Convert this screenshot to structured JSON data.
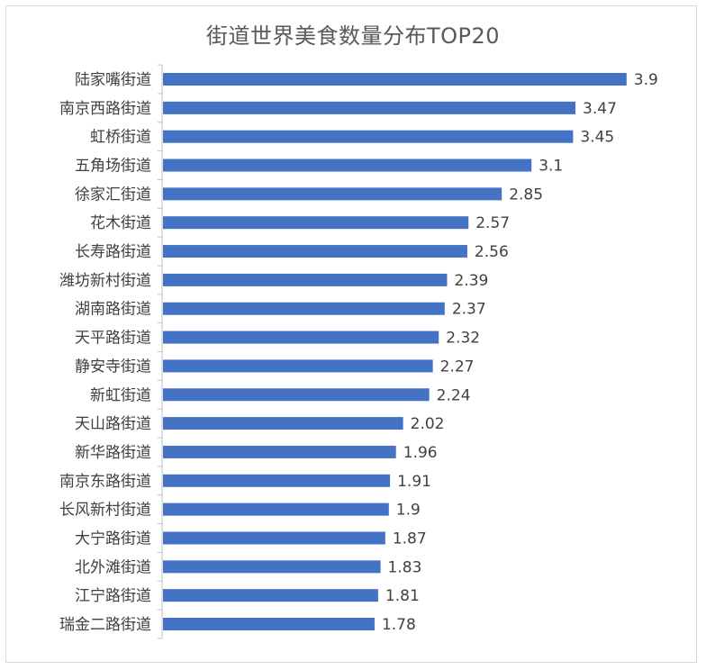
{
  "chart_data": {
    "type": "bar",
    "orientation": "horizontal",
    "title": "街道世界美食数量分布TOP20",
    "categories": [
      "陆家嘴街道",
      "南京西路街道",
      "虹桥街道",
      "五角场街道",
      "徐家汇街道",
      "花木街道",
      "长寿路街道",
      "潍坊新村街道",
      "湖南路街道",
      "天平路街道",
      "静安寺街道",
      "新虹街道",
      "天山路街道",
      "新华路街道",
      "南京东路街道",
      "长风新村街道",
      "大宁路街道",
      "北外滩街道",
      "江宁路街道",
      "瑞金二路街道"
    ],
    "values": [
      3.9,
      3.47,
      3.45,
      3.1,
      2.85,
      2.57,
      2.56,
      2.39,
      2.37,
      2.32,
      2.27,
      2.24,
      2.02,
      1.96,
      1.91,
      1.9,
      1.87,
      1.83,
      1.81,
      1.78
    ],
    "value_labels": [
      "3.9",
      "3.47",
      "3.45",
      "3.1",
      "2.85",
      "2.57",
      "2.56",
      "2.39",
      "2.37",
      "2.32",
      "2.27",
      "2.24",
      "2.02",
      "1.96",
      "1.91",
      "1.9",
      "1.87",
      "1.83",
      "1.81",
      "1.78"
    ],
    "xlim": [
      0,
      4
    ],
    "bar_color": "#4472c4",
    "grid": false,
    "legend": "none"
  }
}
